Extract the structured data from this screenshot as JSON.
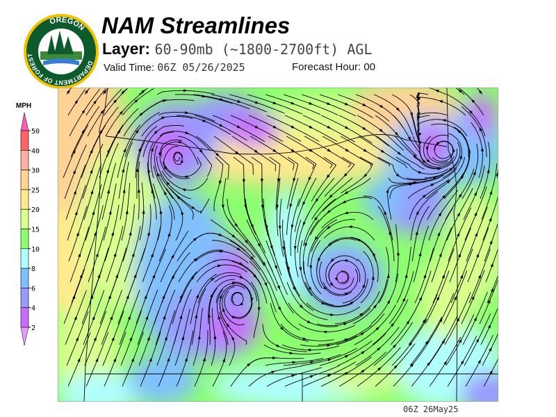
{
  "header": {
    "title": "NAM Streamlines",
    "layer_label": "Layer:",
    "layer_value": "60-90mb (~1800-2700ft) AGL",
    "valid_label": "Valid Time:",
    "valid_value": "06Z 05/26/2025",
    "forecast_label": "Forecast Hour:",
    "forecast_value": "00"
  },
  "logo": {
    "text_top": "OREGON",
    "text_ring": "DEPARTMENT OF FORESTRY"
  },
  "legend": {
    "unit": "MPH",
    "ticks": [
      "50",
      "40",
      "30",
      "25",
      "20",
      "15",
      "10",
      "8",
      "6",
      "4",
      "2"
    ],
    "colors": [
      "#ff6464",
      "#ffb0a0",
      "#ffd296",
      "#ffeb8c",
      "#d9ff8c",
      "#8cff6e",
      "#b0ffff",
      "#80c0ff",
      "#9999ff",
      "#c86eff"
    ],
    "over_color": "#ff5ab4",
    "under_color": "#e89bff"
  },
  "map": {
    "type": "streamlines",
    "variable": "wind speed",
    "units": "MPH"
  },
  "footer": {
    "stamp": "06Z 26May25"
  }
}
